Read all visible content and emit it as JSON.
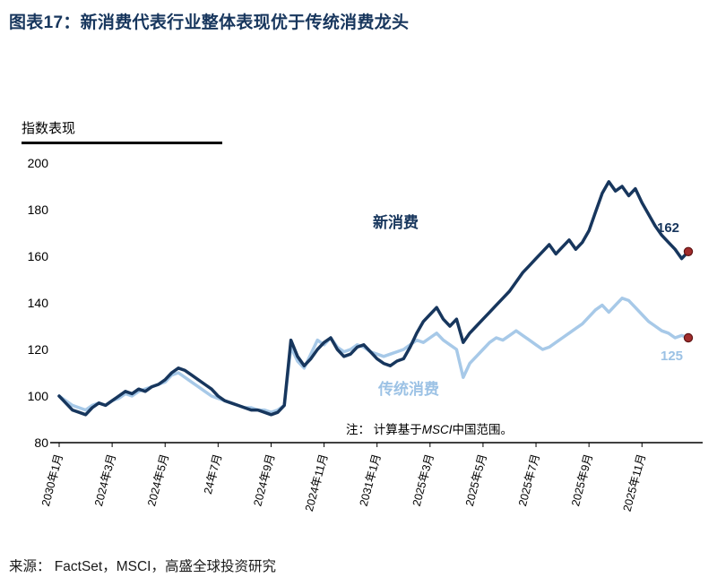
{
  "header": {
    "title_label": "图表17：",
    "title_text": "新消费代表行业整体表现优于传统消费龙头"
  },
  "chart_data": {
    "type": "line",
    "axis_title": "指数表现",
    "ylim": [
      80,
      200
    ],
    "y_ticks": [
      200,
      180,
      160,
      140,
      120,
      100,
      80
    ],
    "grid": false,
    "legend_position": "inline-annotations",
    "x_tick_labels": [
      "2030年1月",
      "2024年3月",
      "2024年5月",
      "24年7月",
      "2024年9月",
      "2024年11月",
      "2031年1月",
      "2025年3月",
      "2025年5月",
      "2025年7月",
      "2025年9月",
      "2025年11月"
    ],
    "end_dot_color": "#A02C2C",
    "end_dot_stroke": "#5E1212",
    "series": [
      {
        "name": "传统消费",
        "color": "#A7C9E8",
        "end_label": "125",
        "values": [
          100,
          98,
          96,
          95,
          94,
          96,
          97,
          96,
          98,
          99,
          101,
          100,
          102,
          103,
          104,
          105,
          106,
          109,
          110,
          108,
          106,
          104,
          102,
          100,
          99,
          98,
          97,
          96,
          95,
          95,
          94,
          94,
          93,
          94,
          96,
          121,
          115,
          112,
          118,
          124,
          122,
          125,
          121,
          119,
          120,
          122,
          121,
          119,
          118,
          117,
          118,
          119,
          120,
          122,
          124,
          123,
          125,
          127,
          124,
          122,
          120,
          108,
          114,
          117,
          120,
          123,
          125,
          124,
          126,
          128,
          126,
          124,
          122,
          120,
          121,
          123,
          125,
          127,
          129,
          131,
          134,
          137,
          139,
          136,
          139,
          142,
          141,
          138,
          135,
          132,
          130,
          128,
          127,
          125,
          126,
          125
        ]
      },
      {
        "name": "新消费",
        "color": "#17365D",
        "end_label": "162",
        "values": [
          100,
          97,
          94,
          93,
          92,
          95,
          97,
          96,
          98,
          100,
          102,
          101,
          103,
          102,
          104,
          105,
          107,
          110,
          112,
          111,
          109,
          107,
          105,
          103,
          100,
          98,
          97,
          96,
          95,
          94,
          94,
          93,
          92,
          93,
          96,
          124,
          117,
          113,
          116,
          120,
          123,
          125,
          120,
          117,
          118,
          121,
          122,
          119,
          116,
          114,
          113,
          115,
          116,
          121,
          127,
          132,
          135,
          138,
          133,
          130,
          133,
          123,
          127,
          130,
          133,
          136,
          139,
          142,
          145,
          149,
          153,
          156,
          159,
          162,
          165,
          161,
          164,
          167,
          163,
          166,
          171,
          179,
          187,
          192,
          188,
          190,
          186,
          189,
          183,
          178,
          173,
          169,
          166,
          163,
          159,
          162
        ]
      }
    ],
    "note": {
      "prefix": "注： 计算基于",
      "italic": "MSCI",
      "suffix": "中国范围。"
    }
  },
  "annotations": {
    "dark_label": "新消费",
    "light_label": "传统消费",
    "dark_end_value": "162",
    "light_end_value": "125"
  },
  "footer": {
    "source": "来源： FactSet，MSCI，高盛全球投资研究"
  }
}
